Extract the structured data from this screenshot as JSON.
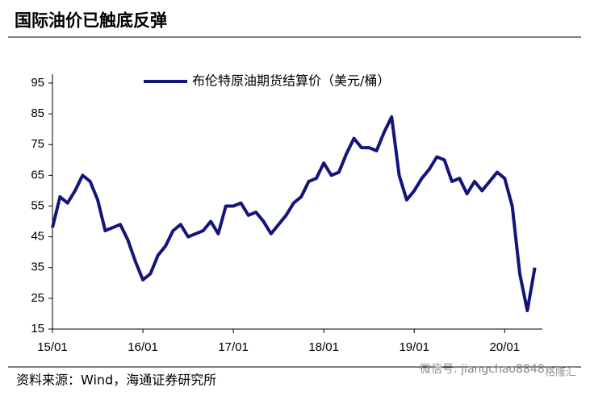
{
  "chart_data": {
    "type": "line",
    "title": "国际油价已触底反弹",
    "source": "资料来源：Wind，海通证券研究所",
    "watermark": "微信号: jiangchao8848",
    "logo": "格隆汇",
    "x": [
      "2015-01",
      "2015-02",
      "2015-03",
      "2015-04",
      "2015-05",
      "2015-06",
      "2015-07",
      "2015-08",
      "2015-09",
      "2015-10",
      "2015-11",
      "2015-12",
      "2016-01",
      "2016-02",
      "2016-03",
      "2016-04",
      "2016-05",
      "2016-06",
      "2016-07",
      "2016-08",
      "2016-09",
      "2016-10",
      "2016-11",
      "2016-12",
      "2017-01",
      "2017-02",
      "2017-03",
      "2017-04",
      "2017-05",
      "2017-06",
      "2017-07",
      "2017-08",
      "2017-09",
      "2017-10",
      "2017-11",
      "2017-12",
      "2018-01",
      "2018-02",
      "2018-03",
      "2018-04",
      "2018-05",
      "2018-06",
      "2018-07",
      "2018-08",
      "2018-09",
      "2018-10",
      "2018-11",
      "2018-12",
      "2019-01",
      "2019-02",
      "2019-03",
      "2019-04",
      "2019-05",
      "2019-06",
      "2019-07",
      "2019-08",
      "2019-09",
      "2019-10",
      "2019-11",
      "2019-12",
      "2020-01",
      "2020-02",
      "2020-03",
      "2020-04",
      "2020-05"
    ],
    "series": [
      {
        "name": "布伦特原油期货结算价（美元/桶）",
        "color": "#14147a",
        "values": [
          48,
          58,
          56,
          60,
          65,
          63,
          57,
          47,
          48,
          49,
          44,
          37,
          31,
          33,
          39,
          42,
          47,
          49,
          45,
          46,
          47,
          50,
          46,
          55,
          55,
          56,
          52,
          53,
          50,
          46,
          49,
          52,
          56,
          58,
          63,
          64,
          69,
          65,
          66,
          72,
          77,
          74,
          74,
          73,
          79,
          84,
          65,
          57,
          60,
          64,
          67,
          71,
          70,
          63,
          64,
          59,
          63,
          60,
          63,
          66,
          64,
          55,
          33,
          21,
          35
        ]
      }
    ],
    "xlim": [
      "2015-01",
      "2020-06"
    ],
    "xticks": [
      {
        "value": "2015-01",
        "label": "15/01"
      },
      {
        "value": "2016-01",
        "label": "16/01"
      },
      {
        "value": "2017-01",
        "label": "17/01"
      },
      {
        "value": "2018-01",
        "label": "18/01"
      },
      {
        "value": "2019-01",
        "label": "19/01"
      },
      {
        "value": "2020-01",
        "label": "20/01"
      }
    ],
    "ylim": [
      15,
      95
    ],
    "yticks": [
      15,
      25,
      35,
      45,
      55,
      65,
      75,
      85,
      95
    ],
    "grid": false,
    "legend": "top"
  }
}
